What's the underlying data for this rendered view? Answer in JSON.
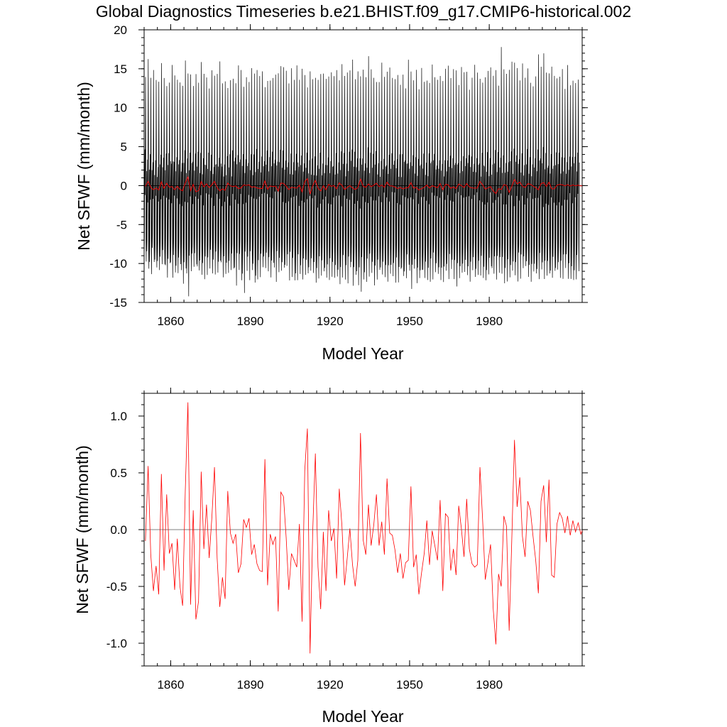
{
  "title": "Global Diagnostics Timeseries b.e21.BHIST.f09_g17.CMIP6-historical.002",
  "colors": {
    "monthly": "#000000",
    "annual": "#ff0000",
    "zero_line": "#000000"
  },
  "chart_data": [
    {
      "type": "line",
      "name": "monthly-and-annual",
      "xlabel": "Model Year",
      "ylabel": "Net SFWF (mm/month)",
      "xlim": [
        1850,
        2015
      ],
      "ylim": [
        -15,
        20
      ],
      "xticks": [
        "1860",
        "1890",
        "1920",
        "1950",
        "1980"
      ],
      "yticks": [
        "-15",
        "-10",
        "-5",
        "0",
        "5",
        "10",
        "15",
        "20"
      ],
      "series": [
        {
          "name": "monthly",
          "description": "monthly values oscillating seasonally roughly between -12 and +17",
          "monthly_amplitude_peaks": [
            14.6,
            15.5,
            13.2,
            14.2,
            13.8,
            13.5,
            15.4,
            13.2,
            13.6,
            14.2,
            15.2,
            14.5,
            13.0,
            14.0,
            13.1,
            15.6,
            14.0,
            13.5,
            13.2,
            14.2,
            13.8,
            15.2,
            14.1,
            13.6,
            13.0,
            14.4,
            13.5,
            14.0,
            15.1,
            13.3,
            14.2,
            13.5,
            13.9,
            14.6,
            13.2,
            15.8,
            14.0,
            13.4,
            14.5,
            13.1,
            14.2,
            13.7,
            15.0,
            13.8,
            14.4,
            13.2,
            14.1,
            13.6,
            14.8,
            13.4,
            14.0,
            15.3,
            14.7,
            13.9,
            13.4,
            14.3,
            13.1,
            14.6,
            13.6,
            15.2,
            14.0,
            13.4,
            14.5,
            13.2,
            13.8,
            14.4,
            15.1,
            13.7,
            14.2,
            13.3,
            14.0,
            13.9,
            14.6,
            13.2,
            14.8,
            13.5,
            14.1,
            15.0,
            16.1,
            13.6,
            14.4,
            13.2,
            14.7,
            13.8,
            17.4,
            14.1,
            13.5,
            14.3,
            13.2,
            14.9,
            13.4,
            14.0,
            15.2,
            13.7,
            14.5,
            13.3,
            13.9,
            14.6,
            13.2,
            15.4,
            14.0,
            13.6,
            14.2,
            13.3,
            14.8,
            13.5,
            14.1,
            13.9,
            15.1,
            14.3,
            13.4,
            14.7,
            13.6,
            14.0,
            15.0,
            13.4,
            14.4,
            13.8,
            13.2,
            14.6,
            13.9,
            14.5,
            13.3,
            14.1,
            15.2,
            13.6,
            14.3,
            13.9,
            13.4,
            14.2,
            15.0,
            13.7,
            14.4,
            13.2,
            17.3,
            14.0,
            13.7,
            14.9,
            16.7,
            16.0,
            14.2,
            13.5,
            14.8,
            13.4,
            15.3,
            14.1,
            13.6,
            14.4,
            17.8,
            15.5,
            16.9,
            14.2,
            13.8,
            14.6,
            13.3,
            14.1,
            13.9,
            14.5,
            13.2,
            14.7,
            13.8,
            14.3,
            13.5,
            14.6
          ],
          "monthly_amplitude_troughs": [
            -10.4,
            -10.6,
            -11.0,
            -10.5,
            -11.4,
            -10.8,
            -11.0,
            -10.7,
            -11.3,
            -10.6,
            -11.8,
            -10.9,
            -11.2,
            -10.5,
            -12.1,
            -11.0,
            -13.9,
            -10.8,
            -11.4,
            -10.6,
            -11.7,
            -10.9,
            -11.1,
            -10.7,
            -11.5,
            -10.8,
            -12.0,
            -11.1,
            -10.6,
            -11.3,
            -10.9,
            -11.6,
            -10.7,
            -11.2,
            -11.9,
            -10.8,
            -11.4,
            -12.8,
            -10.9,
            -11.2,
            -10.6,
            -11.5,
            -12.6,
            -10.8,
            -11.1,
            -11.4,
            -10.7,
            -11.3,
            -10.9,
            -11.6,
            -10.8,
            -11.2,
            -10.7,
            -11.0,
            -11.4,
            -10.9,
            -11.6,
            -12.6,
            -10.8,
            -11.5,
            -11.0,
            -12.1,
            -11.3,
            -10.9,
            -11.7,
            -12.4,
            -11.1,
            -10.8,
            -11.6,
            -11.2,
            -12.0,
            -11.4,
            -10.9,
            -11.8,
            -11.3,
            -11.6,
            -12.2,
            -11.0,
            -12.6,
            -11.4,
            -11.9,
            -13.1,
            -11.2,
            -12.4,
            -11.7,
            -11.3,
            -12.0,
            -11.8,
            -11.4,
            -12.3,
            -11.0,
            -11.5,
            -11.9,
            -11.2,
            -12.1,
            -11.6,
            -11.3,
            -11.8,
            -12.2,
            -11.1,
            -13.1,
            -11.5,
            -11.9,
            -11.3,
            -11.7,
            -12.0,
            -11.4,
            -13.2,
            -11.8,
            -11.2,
            -11.6,
            -12.1,
            -11.5,
            -11.3,
            -11.8,
            -11.1,
            -11.6,
            -12.0,
            -11.4,
            -11.2,
            -11.7,
            -11.3,
            -11.9,
            -11.1,
            -11.5,
            -11.8,
            -11.2,
            -11.6,
            -11.4,
            -11.9,
            -11.1,
            -11.7,
            -11.3,
            -11.5,
            -11.2,
            -11.8,
            -11.4,
            -11.0,
            -11.6,
            -11.3,
            -11.9,
            -11.2,
            -11.5,
            -11.1,
            -11.7,
            -11.4,
            -11.8,
            -11.3,
            -11.6,
            -11.2,
            -11.9,
            -11.5,
            -11.4,
            -12.0,
            -11.7,
            -11.3,
            -11.6,
            -11.8,
            -11.2,
            -11.5,
            -11.9,
            -11.3,
            -12.0,
            -11.4
          ]
        },
        {
          "name": "annual",
          "ref": "annual_values"
        }
      ]
    },
    {
      "type": "line",
      "name": "annual-mean",
      "xlabel": "Model Year",
      "ylabel": "Net SFWF (mm/month)",
      "xlim": [
        1850,
        2015
      ],
      "ylim": [
        -1.2,
        1.2
      ],
      "xticks": [
        "1860",
        "1890",
        "1920",
        "1950",
        "1980"
      ],
      "yticks": [
        "-1.0",
        "-0.5",
        "0.0",
        "0.5",
        "1.0"
      ],
      "x_start": 1850.5,
      "x_step": 1,
      "annual_values": [
        -0.1,
        0.56,
        -0.22,
        -0.54,
        -0.32,
        -0.57,
        0.49,
        -0.36,
        0.31,
        -0.21,
        -0.12,
        -0.53,
        -0.08,
        -0.5,
        -0.67,
        0.34,
        1.12,
        -0.66,
        0.17,
        -0.79,
        -0.63,
        0.51,
        -0.17,
        0.22,
        -0.25,
        0.1,
        0.55,
        -0.25,
        -0.68,
        -0.42,
        -0.61,
        0.34,
        -0.03,
        -0.12,
        -0.04,
        -0.38,
        -0.3,
        0.09,
        0.02,
        0.1,
        -0.22,
        -0.13,
        -0.3,
        -0.36,
        -0.37,
        0.62,
        -0.49,
        -0.04,
        -0.13,
        -0.06,
        -0.72,
        0.33,
        0.29,
        -0.07,
        -0.53,
        -0.21,
        -0.27,
        -0.33,
        0.05,
        -0.81,
        0.52,
        0.89,
        -1.09,
        -0.02,
        0.67,
        -0.33,
        -0.7,
        -0.02,
        -0.54,
        0.17,
        -0.1,
        0.01,
        -0.43,
        0.36,
        0.04,
        -0.49,
        -0.25,
        0.01,
        -0.31,
        -0.5,
        -0.27,
        0.85,
        -0.09,
        -0.22,
        0.22,
        -0.14,
        0.04,
        0.31,
        -0.14,
        0.07,
        -0.22,
        0.45,
        -0.03,
        -0.05,
        -0.18,
        -0.38,
        -0.21,
        -0.43,
        -0.29,
        -0.27,
        0.38,
        -0.33,
        -0.22,
        -0.57,
        -0.38,
        -0.21,
        0.08,
        -0.31,
        -0.01,
        -0.14,
        -0.27,
        0.26,
        -0.54,
        0.14,
        0.11,
        -0.36,
        -0.17,
        -0.4,
        0.21,
        0.01,
        -0.24,
        0.27,
        -0.17,
        -0.3,
        -0.33,
        -0.31,
        0.55,
        0.09,
        -0.44,
        -0.29,
        -0.13,
        -0.7,
        -1.01,
        -0.39,
        -0.5,
        0.12,
        0.03,
        -0.89,
        -0.08,
        0.79,
        0.2,
        0.46,
        -0.06,
        -0.24,
        0.25,
        0.17,
        -0.06,
        -0.27,
        -0.56,
        0.25,
        0.39,
        -0.11,
        0.44,
        -0.4,
        -0.42,
        0.05,
        0.15,
        0.1,
        -0.03,
        0.12,
        -0.05,
        0.08,
        -0.02,
        0.06,
        -0.04,
        0.02
      ]
    }
  ]
}
